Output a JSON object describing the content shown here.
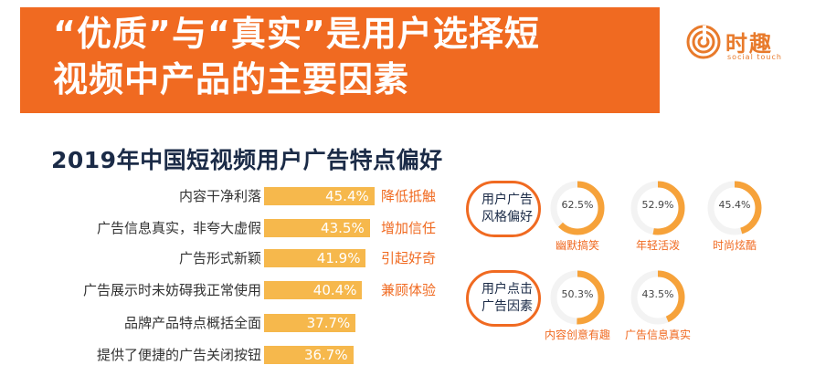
{
  "header": {
    "title_line_1": "“优质”与“真实”是用户选择短",
    "title_line_2": "视频中产品的主要因素",
    "band_color": "#f06a21"
  },
  "logo": {
    "text_cn": "时趣",
    "text_en": "social touch",
    "icon": "spiral-logo-icon"
  },
  "chart_data": [
    {
      "type": "bar",
      "title": "2019年中国短视频用户广告特点偏好",
      "orientation": "horizontal",
      "categories": [
        "内容干净利落",
        "广告信息真实，非夸大虚假",
        "广告形式新颖",
        "广告展示时未妨碍我正常使用",
        "品牌产品特点概括全面",
        "提供了便捷的广告关闭按钮"
      ],
      "values": [
        45.4,
        43.5,
        41.9,
        40.4,
        37.7,
        36.7
      ],
      "value_labels": [
        "45.4%",
        "43.5%",
        "41.9%",
        "40.4%",
        "37.7%",
        "36.7%"
      ],
      "tags": [
        "降低抵触",
        "增加信任",
        "引起好奇",
        "兼顾体验",
        "",
        ""
      ],
      "unit": "%",
      "bar_color": "#f6b84c",
      "tag_color": "#f06a21"
    },
    {
      "type": "pie",
      "group": "用户广告风格偏好",
      "group_label": "用户广告\n风格偏好",
      "categories": [
        "幽默搞笑",
        "年轻活泼",
        "时尚炫酷"
      ],
      "values": [
        62.5,
        52.9,
        45.4
      ],
      "value_labels": [
        "62.5%",
        "52.9%",
        "45.4%"
      ],
      "colors": {
        "fill": "#f6a23a",
        "track": "#f3f3f3"
      }
    },
    {
      "type": "pie",
      "group": "用户点击广告因素",
      "group_label": "用户点击\n广告因素",
      "categories": [
        "内容创意有趣",
        "广告信息真实"
      ],
      "values": [
        50.3,
        43.5
      ],
      "value_labels": [
        "50.3%",
        "43.5%"
      ],
      "colors": {
        "fill": "#f6a23a",
        "track": "#f3f3f3"
      }
    }
  ]
}
